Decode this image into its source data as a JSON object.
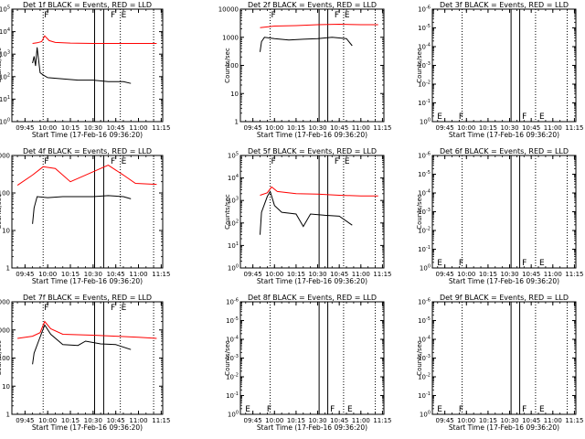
{
  "figure": {
    "legend_note": "BLACK = Events, RED = LLD",
    "subtitle": "Start Time (17-Feb-16 09:36:20)",
    "ylabel": "Counts/sec",
    "x_ticks": [
      "09:45",
      "10:00",
      "10:15",
      "10:30",
      "10:45",
      "11:00",
      "11:15"
    ],
    "colors": {
      "events": "#000000",
      "lld": "#ff0000",
      "axis": "#000000"
    }
  },
  "chart_data": [
    {
      "type": "line",
      "title": "Det 1f BLACK = Events, RED = LLD",
      "xlabel": "Start Time (17-Feb-16 09:36:20)",
      "ylabel": "Counts/sec",
      "xlim": [
        "09:36:20",
        "11:16:00"
      ],
      "ylim": [
        1,
        100000
      ],
      "yscale": "log",
      "y_ticks": [
        "10^0",
        "10^1",
        "10^2",
        "10^3",
        "10^4",
        "10^5"
      ],
      "markers": [
        {
          "time": "09:57",
          "label": "F"
        },
        {
          "time": "10:41",
          "label": "F"
        },
        {
          "time": "10:48",
          "label": "E"
        }
      ],
      "solid_lines": [
        "10:31",
        "10:37"
      ],
      "dotted_lines": [
        "09:57",
        "10:48",
        "11:10"
      ],
      "series": [
        {
          "name": "Events",
          "color": "#000000",
          "points": [
            [
              "09:50",
              400
            ],
            [
              "09:51",
              800
            ],
            [
              "09:52",
              300
            ],
            [
              "09:53",
              2000
            ],
            [
              "09:55",
              150
            ],
            [
              "09:57",
              120
            ],
            [
              "10:00",
              90
            ],
            [
              "10:10",
              80
            ],
            [
              "10:20",
              70
            ],
            [
              "10:30",
              70
            ],
            [
              "10:40",
              60
            ],
            [
              "10:50",
              60
            ],
            [
              "10:55",
              50
            ]
          ]
        },
        {
          "name": "LLD",
          "color": "#ff0000",
          "points": [
            [
              "09:50",
              3000
            ],
            [
              "09:53",
              3200
            ],
            [
              "09:56",
              3600
            ],
            [
              "09:58",
              6500
            ],
            [
              "10:01",
              4000
            ],
            [
              "10:05",
              3300
            ],
            [
              "10:15",
              3100
            ],
            [
              "10:30",
              3000
            ],
            [
              "10:45",
              3000
            ],
            [
              "11:00",
              3000
            ],
            [
              "11:12",
              3000
            ]
          ]
        }
      ]
    },
    {
      "type": "line",
      "title": "Det 2f BLACK = Events, RED = LLD",
      "xlabel": "Start Time (17-Feb-16 09:36:20)",
      "ylabel": "Counts/sec",
      "xlim": [
        "09:36:20",
        "11:16:00"
      ],
      "ylim": [
        1,
        10000
      ],
      "yscale": "log",
      "y_ticks": [
        "1",
        "10",
        "100",
        "1000",
        "10000"
      ],
      "markers": [
        {
          "time": "09:57",
          "label": "F"
        },
        {
          "time": "10:41",
          "label": "F"
        },
        {
          "time": "10:48",
          "label": "E"
        }
      ],
      "solid_lines": [
        "10:31",
        "10:37"
      ],
      "dotted_lines": [
        "09:57",
        "10:48",
        "11:10"
      ],
      "series": [
        {
          "name": "Events",
          "color": "#000000",
          "points": [
            [
              "09:50",
              300
            ],
            [
              "09:51",
              700
            ],
            [
              "09:53",
              1000
            ],
            [
              "10:00",
              900
            ],
            [
              "10:10",
              800
            ],
            [
              "10:20",
              850
            ],
            [
              "10:30",
              900
            ],
            [
              "10:40",
              1000
            ],
            [
              "10:50",
              900
            ],
            [
              "10:54",
              500
            ]
          ]
        },
        {
          "name": "LLD",
          "color": "#ff0000",
          "points": [
            [
              "09:50",
              2200
            ],
            [
              "10:00",
              2500
            ],
            [
              "10:15",
              2600
            ],
            [
              "10:30",
              2800
            ],
            [
              "10:45",
              2900
            ],
            [
              "11:00",
              2800
            ],
            [
              "11:12",
              2800
            ]
          ]
        }
      ]
    },
    {
      "type": "line",
      "title": "Det 3f BLACK = Events, RED = LLD",
      "xlabel": "Start Time (17-Feb-16 09:36:20)",
      "ylabel": "Counts/sec",
      "xlim": [
        "09:36:20",
        "11:16:00"
      ],
      "ylim": [
        1,
        1e-06
      ],
      "yscale": "log",
      "y_ticks": [
        "10^0",
        "10^-1",
        "10^-2",
        "10^-3",
        "10^-4",
        "10^-5",
        "10^-6"
      ],
      "markers": [
        {
          "time": "09:39",
          "label": "E"
        },
        {
          "time": "09:54",
          "label": "F"
        },
        {
          "time": "10:38",
          "label": "F"
        },
        {
          "time": "10:50",
          "label": "E"
        }
      ],
      "solid_lines": [
        "10:31",
        "10:37"
      ],
      "dotted_lines": [
        "09:57",
        "10:48",
        "11:10"
      ],
      "series": []
    },
    {
      "type": "line",
      "title": "Det 4f BLACK = Events, RED = LLD",
      "xlabel": "Start Time (17-Feb-16 09:36:20)",
      "ylabel": "Counts/sec",
      "xlim": [
        "09:36:20",
        "11:16:00"
      ],
      "ylim": [
        1,
        1000
      ],
      "yscale": "log",
      "y_ticks": [
        "1",
        "10",
        "100",
        "1000"
      ],
      "markers": [
        {
          "time": "09:57",
          "label": "F"
        },
        {
          "time": "10:41",
          "label": "F"
        },
        {
          "time": "10:48",
          "label": "E"
        }
      ],
      "solid_lines": [
        "10:31",
        "10:37"
      ],
      "dotted_lines": [
        "09:57",
        "10:48",
        "11:10"
      ],
      "series": [
        {
          "name": "Events",
          "color": "#000000",
          "points": [
            [
              "09:50",
              15
            ],
            [
              "09:51",
              40
            ],
            [
              "09:53",
              80
            ],
            [
              "10:00",
              75
            ],
            [
              "10:10",
              80
            ],
            [
              "10:20",
              80
            ],
            [
              "10:30",
              80
            ],
            [
              "10:40",
              85
            ],
            [
              "10:50",
              80
            ],
            [
              "10:55",
              70
            ]
          ]
        },
        {
          "name": "LLD",
          "color": "#ff0000",
          "points": [
            [
              "09:40",
              160
            ],
            [
              "09:50",
              300
            ],
            [
              "09:57",
              500
            ],
            [
              "10:05",
              450
            ],
            [
              "10:15",
              200
            ],
            [
              "10:25",
              300
            ],
            [
              "10:40",
              550
            ],
            [
              "10:50",
              300
            ],
            [
              "10:58",
              180
            ],
            [
              "11:12",
              170
            ]
          ]
        }
      ]
    },
    {
      "type": "line",
      "title": "Det 5f BLACK = Events, RED = LLD",
      "xlabel": "Start Time (17-Feb-16 09:36:20)",
      "ylabel": "Counts/sec",
      "xlim": [
        "09:36:20",
        "11:16:00"
      ],
      "ylim": [
        1,
        100000
      ],
      "yscale": "log",
      "y_ticks": [
        "10^0",
        "10^1",
        "10^2",
        "10^3",
        "10^4",
        "10^5"
      ],
      "markers": [
        {
          "time": "09:57",
          "label": "F"
        },
        {
          "time": "10:41",
          "label": "F"
        },
        {
          "time": "10:48",
          "label": "E"
        }
      ],
      "solid_lines": [
        "10:31",
        "10:37"
      ],
      "dotted_lines": [
        "09:57",
        "10:48",
        "11:10"
      ],
      "series": [
        {
          "name": "Events",
          "color": "#000000",
          "points": [
            [
              "09:50",
              30
            ],
            [
              "09:51",
              300
            ],
            [
              "09:55",
              1500
            ],
            [
              "09:57",
              2500
            ],
            [
              "10:00",
              600
            ],
            [
              "10:05",
              300
            ],
            [
              "10:15",
              250
            ],
            [
              "10:20",
              70
            ],
            [
              "10:25",
              250
            ],
            [
              "10:35",
              220
            ],
            [
              "10:45",
              200
            ],
            [
              "10:54",
              80
            ]
          ]
        },
        {
          "name": "LLD",
          "color": "#ff0000",
          "points": [
            [
              "09:50",
              1700
            ],
            [
              "09:55",
              2200
            ],
            [
              "09:58",
              4000
            ],
            [
              "10:02",
              2500
            ],
            [
              "10:15",
              2000
            ],
            [
              "10:30",
              1900
            ],
            [
              "10:45",
              1700
            ],
            [
              "11:00",
              1600
            ],
            [
              "11:12",
              1600
            ]
          ]
        }
      ]
    },
    {
      "type": "line",
      "title": "Det 6f BLACK = Events, RED = LLD",
      "xlabel": "Start Time (17-Feb-16 09:36:20)",
      "ylabel": "Counts/sec",
      "xlim": [
        "09:36:20",
        "11:16:00"
      ],
      "ylim": [
        1,
        1e-06
      ],
      "yscale": "log",
      "y_ticks": [
        "10^0",
        "10^-1",
        "10^-2",
        "10^-3",
        "10^-4",
        "10^-5",
        "10^-6"
      ],
      "markers": [
        {
          "time": "09:39",
          "label": "E"
        },
        {
          "time": "09:54",
          "label": "F"
        },
        {
          "time": "10:38",
          "label": "F"
        },
        {
          "time": "10:50",
          "label": "E"
        }
      ],
      "solid_lines": [
        "10:31",
        "10:37"
      ],
      "dotted_lines": [
        "09:57",
        "10:48",
        "11:10"
      ],
      "series": []
    },
    {
      "type": "line",
      "title": "Det 7f BLACK = Events, RED = LLD",
      "xlabel": "Start Time (17-Feb-16 09:36:20)",
      "ylabel": "Counts/sec",
      "xlim": [
        "09:36:20",
        "11:16:00"
      ],
      "ylim": [
        1,
        10000
      ],
      "yscale": "log",
      "y_ticks": [
        "1",
        "10",
        "100",
        "1000",
        "10000"
      ],
      "markers": [
        {
          "time": "09:57",
          "label": "F"
        },
        {
          "time": "10:41",
          "label": "F"
        },
        {
          "time": "10:48",
          "label": "E"
        }
      ],
      "solid_lines": [
        "10:31",
        "10:37"
      ],
      "dotted_lines": [
        "09:57",
        "10:48",
        "11:10"
      ],
      "series": [
        {
          "name": "Events",
          "color": "#000000",
          "points": [
            [
              "09:50",
              60
            ],
            [
              "09:51",
              150
            ],
            [
              "09:54",
              400
            ],
            [
              "09:58",
              1500
            ],
            [
              "10:02",
              700
            ],
            [
              "10:10",
              300
            ],
            [
              "10:20",
              280
            ],
            [
              "10:25",
              400
            ],
            [
              "10:35",
              320
            ],
            [
              "10:45",
              300
            ],
            [
              "10:55",
              200
            ]
          ]
        },
        {
          "name": "LLD",
          "color": "#ff0000",
          "points": [
            [
              "09:40",
              500
            ],
            [
              "09:50",
              600
            ],
            [
              "09:55",
              800
            ],
            [
              "09:58",
              2000
            ],
            [
              "10:02",
              1100
            ],
            [
              "10:10",
              700
            ],
            [
              "10:30",
              650
            ],
            [
              "10:45",
              600
            ],
            [
              "11:00",
              550
            ],
            [
              "11:12",
              500
            ]
          ]
        }
      ]
    },
    {
      "type": "line",
      "title": "Det 8f BLACK = Events, RED = LLD",
      "xlabel": "Start Time (17-Feb-16 09:36:20)",
      "ylabel": "Counts/sec",
      "xlim": [
        "09:36:20",
        "11:16:00"
      ],
      "ylim": [
        1,
        1e-06
      ],
      "yscale": "log",
      "y_ticks": [
        "10^0",
        "10^-1",
        "10^-2",
        "10^-3",
        "10^-4",
        "10^-5",
        "10^-6"
      ],
      "markers": [
        {
          "time": "09:39",
          "label": "E"
        },
        {
          "time": "09:54",
          "label": "F"
        },
        {
          "time": "10:38",
          "label": "F"
        },
        {
          "time": "10:50",
          "label": "E"
        }
      ],
      "solid_lines": [
        "10:31",
        "10:37"
      ],
      "dotted_lines": [
        "09:57",
        "10:48",
        "11:10"
      ],
      "series": []
    },
    {
      "type": "line",
      "title": "Det 9f BLACK = Events, RED = LLD",
      "xlabel": "Start Time (17-Feb-16 09:36:20)",
      "ylabel": "Counts/sec",
      "xlim": [
        "09:36:20",
        "11:16:00"
      ],
      "ylim": [
        1,
        1e-06
      ],
      "yscale": "log",
      "y_ticks": [
        "10^0",
        "10^-1",
        "10^-2",
        "10^-3",
        "10^-4",
        "10^-5",
        "10^-6"
      ],
      "markers": [
        {
          "time": "09:39",
          "label": "E"
        },
        {
          "time": "09:54",
          "label": "F"
        },
        {
          "time": "10:38",
          "label": "F"
        },
        {
          "time": "10:50",
          "label": "E"
        }
      ],
      "solid_lines": [
        "10:31",
        "10:37"
      ],
      "dotted_lines": [
        "09:57",
        "10:48",
        "11:10"
      ],
      "series": []
    }
  ]
}
